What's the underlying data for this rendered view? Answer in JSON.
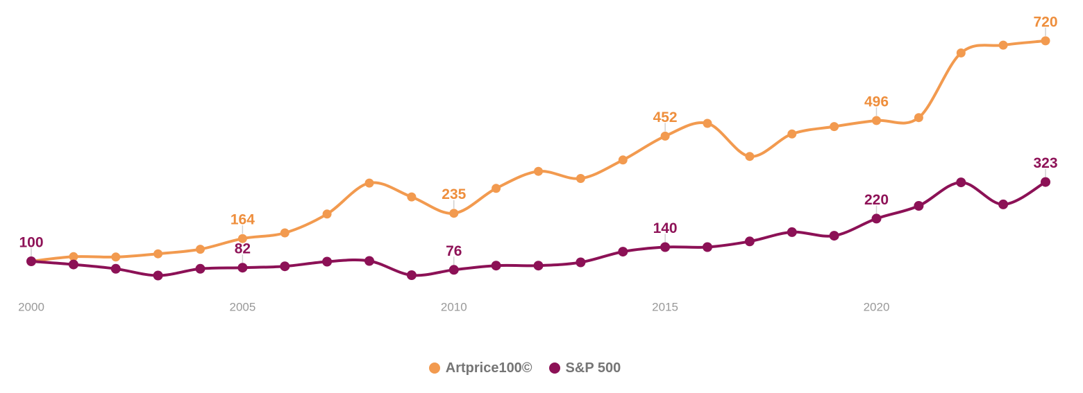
{
  "chart_data": {
    "type": "line",
    "title": "",
    "grid": false,
    "legend_position": "bottom-center",
    "y_axis": {
      "visible": false
    },
    "x_axis": {
      "tick_labels": [
        "2000",
        "2005",
        "2010",
        "2015",
        "2020"
      ],
      "tick_years": [
        2000,
        2005,
        2010,
        2015,
        2020
      ],
      "tick_color": "#999999"
    },
    "x": [
      2000,
      2001,
      2002,
      2003,
      2004,
      2005,
      2006,
      2007,
      2008,
      2009,
      2010,
      2011,
      2012,
      2013,
      2014,
      2015,
      2016,
      2017,
      2018,
      2019,
      2020,
      2021,
      2022,
      2023,
      2024
    ],
    "series": [
      {
        "name": "Artprice100©",
        "color": "#F29A4F",
        "label_color": "#EE8E3C",
        "values": [
          100,
          113,
          112,
          121,
          134,
          164,
          180,
          233,
          320,
          281,
          235,
          305,
          353,
          333,
          385,
          452,
          488,
          395,
          458,
          479,
          496,
          504,
          686,
          708,
          720
        ],
        "point_labels": {
          "2005": "164",
          "2010": "235",
          "2015": "452",
          "2020": "496",
          "2024": "720"
        }
      },
      {
        "name": "S&P 500",
        "color": "#8C1156",
        "label_color": "#8E1257",
        "values": [
          100,
          91,
          79,
          60,
          79,
          82,
          86,
          99,
          101,
          61,
          76,
          88,
          88,
          97,
          127,
          140,
          140,
          156,
          182,
          172,
          220,
          256,
          322,
          260,
          323
        ],
        "point_labels": {
          "2000": "100",
          "2005": "82",
          "2010": "76",
          "2015": "140",
          "2020": "220",
          "2024": "323"
        }
      }
    ],
    "callout_connector_color": "#D0D0D0",
    "legend": {
      "text_color": "#757575",
      "items": [
        {
          "label": "Artprice100©",
          "color": "#F29A4F"
        },
        {
          "label": "S&P 500",
          "color": "#8C1156"
        }
      ]
    }
  }
}
